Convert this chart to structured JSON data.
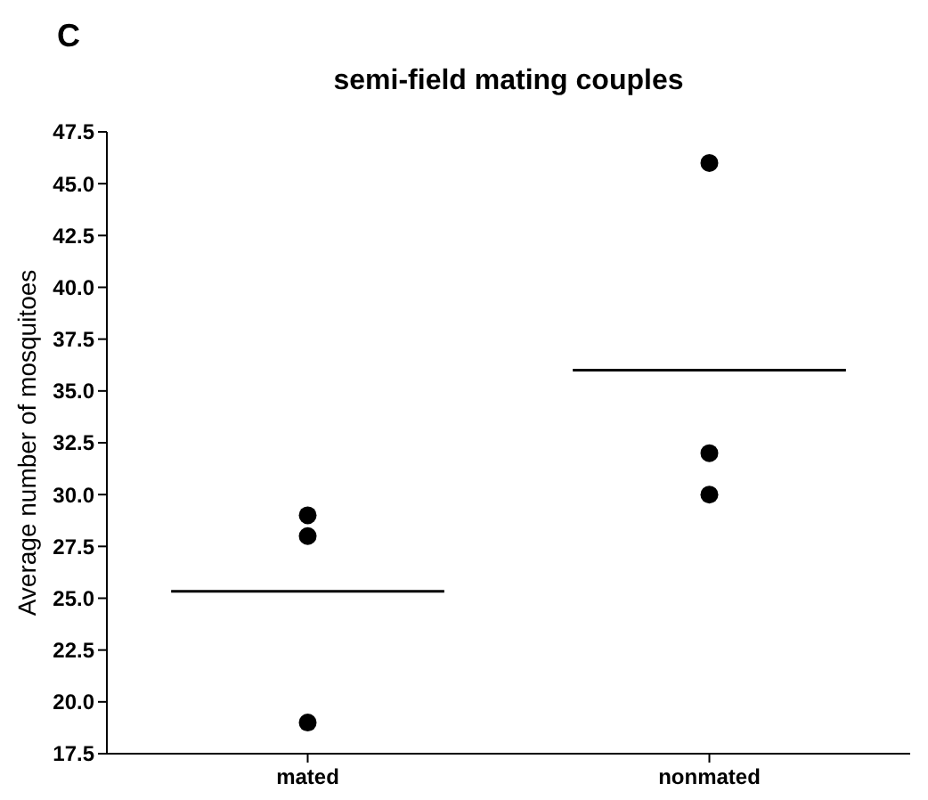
{
  "chart_data": {
    "type": "scatter",
    "title": "semi-field mating couples",
    "ylabel": "Average number of mosquitoes",
    "annotations": [
      "C"
    ],
    "categories": [
      "mated",
      "nonmated"
    ],
    "series": [
      {
        "color": "#000000",
        "x": [
          "mated",
          "mated",
          "mated",
          "nonmated",
          "nonmated",
          "nonmated"
        ],
        "values": [
          29,
          28,
          19,
          46,
          32,
          30
        ]
      }
    ],
    "ref_lines": [
      {
        "axis": "y",
        "value": 25.33,
        "label": null,
        "color": "#000000"
      },
      {
        "axis": "y",
        "value": 36,
        "label": null,
        "color": "#000000"
      }
    ],
    "ylim": [
      17.5,
      47.5
    ],
    "yticks": [
      17.5,
      {
        "value": 20,
        "label": "20.0"
      },
      22.5,
      {
        "value": 25,
        "label": "25.0"
      },
      27.5,
      {
        "value": 30,
        "label": "30.0"
      },
      32.5,
      {
        "value": 35,
        "label": "35.0"
      },
      37.5,
      {
        "value": 40,
        "label": "40.0"
      },
      42.5,
      {
        "value": 45,
        "label": "45.0"
      },
      47.5
    ],
    "marker": "circle",
    "grid": false
  }
}
